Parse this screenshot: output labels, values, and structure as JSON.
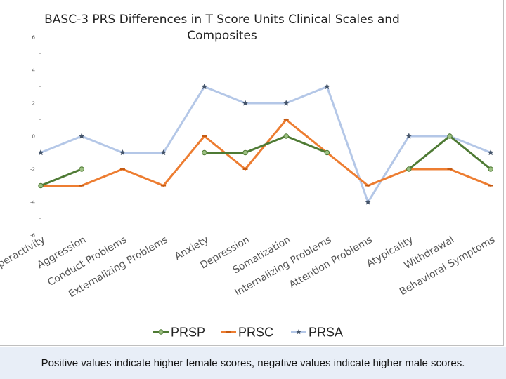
{
  "chart_data": {
    "type": "line",
    "title": "BASC-3 PRS Differences in T Score Units Clinical Scales and Composites",
    "title_lines": [
      "BASC-3 PRS Differences in T Score Units Clinical Scales and",
      "Composites"
    ],
    "categories": [
      "Hyperactivity",
      "Aggression",
      "Conduct Problems",
      "Externalizing Problems",
      "Anxiety",
      "Depression",
      "Somatization",
      "Internalizing Problems",
      "Attention Problems",
      "Atypicality",
      "Withdrawal",
      "Behavioral Symptoms"
    ],
    "yticks": [
      "6",
      "4",
      "2",
      "0",
      "-2",
      "-4",
      "-6"
    ],
    "ylim": [
      -6,
      6
    ],
    "grid": false,
    "legend_position": "bottom",
    "series": [
      {
        "name": "PRSP",
        "color": "#4e7a34",
        "marker": "circle",
        "values": [
          -3,
          -2,
          null,
          null,
          -1,
          -1,
          0,
          -1,
          null,
          -2,
          0,
          -2
        ]
      },
      {
        "name": "PRSC",
        "color": "#ed7d31",
        "marker": "dash",
        "values": [
          -3,
          -3,
          -2,
          -3,
          0,
          -2,
          1,
          -1,
          -3,
          -2,
          -2,
          -3
        ]
      },
      {
        "name": "PRSA",
        "color": "#b4c7e7",
        "marker": "star",
        "values": [
          -1,
          0,
          -1,
          -1,
          3,
          2,
          2,
          3,
          -4,
          0,
          0,
          -1
        ]
      }
    ]
  },
  "footer": {
    "note": "Positive values indicate higher female scores, negative values indicate higher male scores."
  }
}
